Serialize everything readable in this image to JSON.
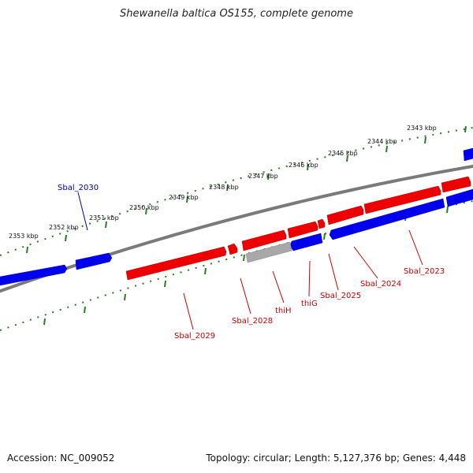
{
  "title": "Shewanella baltica OS155, complete genome",
  "footer": {
    "accession": "Accession: NC_009052",
    "summary": "Topology: circular; Length: 5,127,376 bp; Genes: 4,448"
  },
  "ruler_labels": [
    "2343 kbp",
    "2344 kbp",
    "2345 kbp",
    "2346 kbp",
    "2347 kbp",
    "2348 kbp",
    "2349 kbp",
    "2350 kbp",
    "2351 kbp",
    "2352 kbp",
    "2353 kbp"
  ],
  "genes": [
    {
      "name": "Sbal_2023",
      "color": "#cc0000"
    },
    {
      "name": "Sbal_2024",
      "color": "#cc0000"
    },
    {
      "name": "Sbal_2025",
      "color": "#cc0000"
    },
    {
      "name": "thiG",
      "color": "#cc0000"
    },
    {
      "name": "thiH",
      "color": "#cc0000"
    },
    {
      "name": "Sbal_2028",
      "color": "#cc0000"
    },
    {
      "name": "Sbal_2029",
      "color": "#cc0000"
    },
    {
      "name": "Sbal_2030",
      "color": "#0000aa"
    }
  ],
  "colors": {
    "forward_cds": "#ff0000",
    "reverse_cds": "#0000ff",
    "backbone": "#808080",
    "ruler_ticks": "#2a7a2a"
  }
}
